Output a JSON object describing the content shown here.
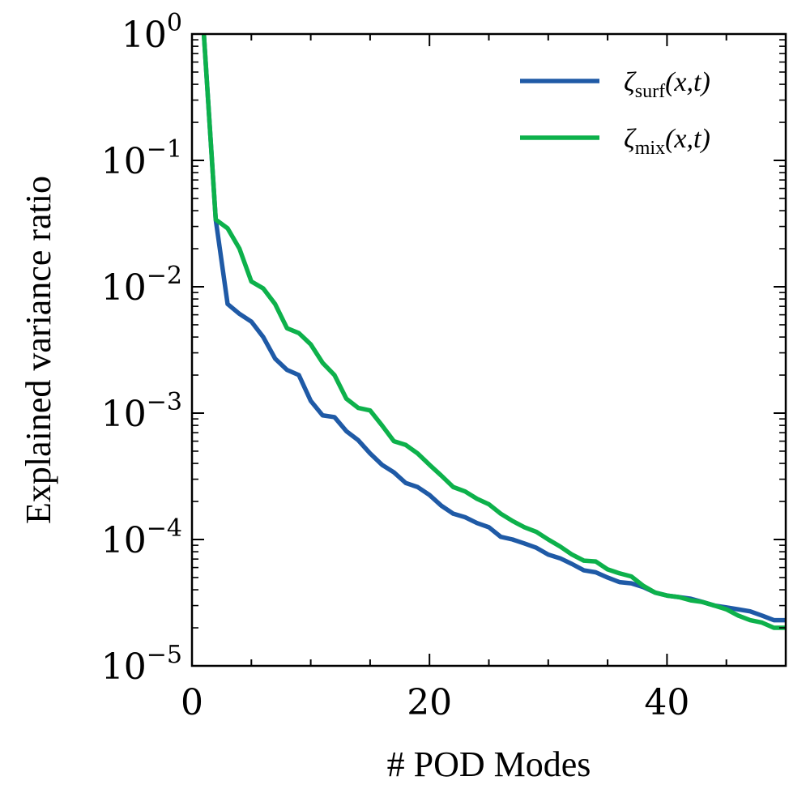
{
  "chart_data": {
    "type": "line",
    "xlabel": "# POD Modes",
    "ylabel": "Explained variance ratio",
    "xlim": [
      0,
      50
    ],
    "ylim": [
      1e-05,
      1
    ],
    "yscale": "log",
    "xticks": [
      0,
      20,
      40
    ],
    "xtick_labels": [
      "0",
      "20",
      "40"
    ],
    "yticks": [
      1,
      0.1,
      0.01,
      0.001,
      0.0001,
      1e-05
    ],
    "ytick_base": [
      "10",
      "10",
      "10",
      "10",
      "10",
      "10"
    ],
    "ytick_exponents": [
      "0",
      "−1",
      "−2",
      "−3",
      "−4",
      "−5"
    ],
    "legend_position": "top-right",
    "series": [
      {
        "name": "ζsurf(x,t)",
        "symbol": "ζ",
        "subscript": "surf",
        "args": "(x,t)",
        "color": "#1f5aa6",
        "x": [
          1,
          2,
          3,
          4,
          5,
          6,
          7,
          8,
          9,
          10,
          11,
          12,
          13,
          14,
          15,
          16,
          17,
          18,
          19,
          20,
          21,
          22,
          23,
          24,
          25,
          26,
          27,
          28,
          29,
          30,
          31,
          32,
          33,
          34,
          35,
          36,
          37,
          38,
          39,
          40,
          41,
          42,
          43,
          44,
          45,
          46,
          47,
          48,
          49,
          50
        ],
        "values": [
          1.0,
          0.034,
          0.0073,
          0.0061,
          0.0053,
          0.004,
          0.0027,
          0.0022,
          0.002,
          0.00125,
          0.00096,
          0.00093,
          0.00072,
          0.00061,
          0.00048,
          0.00039,
          0.00034,
          0.00028,
          0.00026,
          0.000225,
          0.000185,
          0.00016,
          0.00015,
          0.000135,
          0.000125,
          0.000105,
          0.0001,
          9.3e-05,
          8.6e-05,
          7.6e-05,
          7.1e-05,
          6.4e-05,
          5.7e-05,
          5.5e-05,
          5e-05,
          4.6e-05,
          4.5e-05,
          4.2e-05,
          3.8e-05,
          3.6e-05,
          3.5e-05,
          3.4e-05,
          3.2e-05,
          3e-05,
          2.9e-05,
          2.8e-05,
          2.7e-05,
          2.5e-05,
          2.3e-05,
          2.3e-05
        ]
      },
      {
        "name": "ζmix(x,t)",
        "symbol": "ζ",
        "subscript": "mix",
        "args": "(x,t)",
        "color": "#0db14b",
        "x": [
          1,
          2,
          3,
          4,
          5,
          6,
          7,
          8,
          9,
          10,
          11,
          12,
          13,
          14,
          15,
          16,
          17,
          18,
          19,
          20,
          21,
          22,
          23,
          24,
          25,
          26,
          27,
          28,
          29,
          30,
          31,
          32,
          33,
          34,
          35,
          36,
          37,
          38,
          39,
          40,
          41,
          42,
          43,
          44,
          45,
          46,
          47,
          48,
          49,
          50
        ],
        "values": [
          1.0,
          0.034,
          0.029,
          0.02,
          0.011,
          0.0097,
          0.0073,
          0.0047,
          0.0043,
          0.0035,
          0.0025,
          0.002,
          0.0013,
          0.0011,
          0.00105,
          0.0008,
          0.0006,
          0.00056,
          0.00048,
          0.00039,
          0.00032,
          0.00026,
          0.00024,
          0.00021,
          0.00019,
          0.00016,
          0.00014,
          0.000125,
          0.000115,
          0.0001,
          8.8e-05,
          7.6e-05,
          6.8e-05,
          6.7e-05,
          5.8e-05,
          5.4e-05,
          5.1e-05,
          4.3e-05,
          3.8e-05,
          3.6e-05,
          3.5e-05,
          3.3e-05,
          3.2e-05,
          3e-05,
          2.8e-05,
          2.5e-05,
          2.3e-05,
          2.2e-05,
          2e-05,
          2e-05
        ]
      }
    ]
  }
}
